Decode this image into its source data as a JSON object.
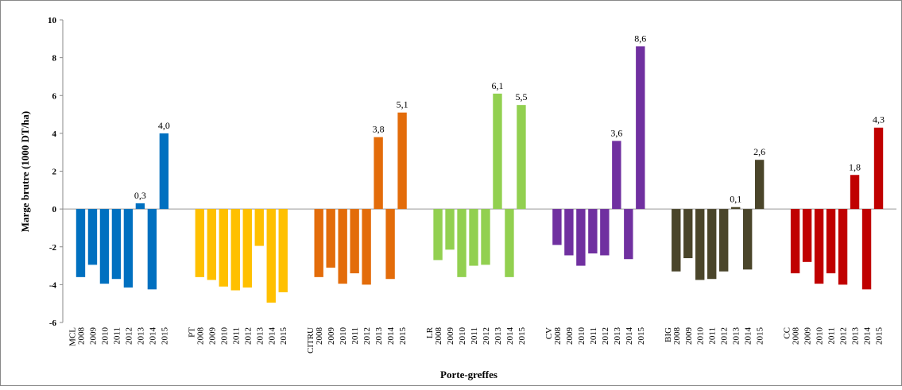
{
  "chart_data": {
    "type": "bar",
    "xlabel": "Porte-greffes",
    "ylabel": "Marge brutre (1000 DT/ha)",
    "ylim": [
      -6,
      10
    ],
    "yticks": [
      -6,
      -4,
      -2,
      0,
      2,
      4,
      6,
      8,
      10
    ],
    "ytick_labels": [
      "-6",
      "-4",
      "-2",
      "0",
      "2",
      "4",
      "6",
      "8",
      "10"
    ],
    "grid": false,
    "legend": "none",
    "years": [
      "2008",
      "2009",
      "2010",
      "2011",
      "2012",
      "2013",
      "2014",
      "2015"
    ],
    "groups": [
      {
        "name": "MCL",
        "color": "#0070C0",
        "values": [
          -3.6,
          -2.95,
          -3.95,
          -3.7,
          -4.15,
          0.3,
          -4.25,
          4.0
        ],
        "labels": [
          "",
          "",
          "",
          "",
          "",
          "0,3",
          "",
          "4,0"
        ]
      },
      {
        "name": "PT",
        "color": "#FFC000",
        "values": [
          -3.6,
          -3.75,
          -4.1,
          -4.3,
          -4.15,
          -1.95,
          -4.95,
          -4.4
        ],
        "labels": [
          "",
          "",
          "",
          "",
          "",
          "",
          "",
          ""
        ]
      },
      {
        "name": "CITRU",
        "color": "#E36C0A",
        "values": [
          -3.6,
          -3.1,
          -3.95,
          -3.4,
          -4.0,
          3.8,
          -3.7,
          5.1
        ],
        "labels": [
          "",
          "",
          "",
          "",
          "",
          "3,8",
          "",
          "5,1"
        ]
      },
      {
        "name": "LR",
        "color": "#92D050",
        "values": [
          -2.7,
          -2.15,
          -3.6,
          -3.0,
          -2.95,
          6.1,
          -3.6,
          5.5
        ],
        "labels": [
          "",
          "",
          "",
          "",
          "",
          "6,1",
          "",
          "5,5"
        ]
      },
      {
        "name": "CV",
        "color": "#7030A0",
        "values": [
          -1.9,
          -2.45,
          -3.0,
          -2.35,
          -2.45,
          3.6,
          -2.65,
          8.6
        ],
        "labels": [
          "",
          "",
          "",
          "",
          "",
          "3,6",
          "",
          "8,6"
        ]
      },
      {
        "name": "BIG",
        "color": "#4A452A",
        "values": [
          -3.3,
          -2.6,
          -3.75,
          -3.7,
          -3.3,
          0.1,
          -3.2,
          2.6
        ],
        "labels": [
          "",
          "",
          "",
          "",
          "",
          "0,1",
          "",
          "2,6"
        ]
      },
      {
        "name": "CC",
        "color": "#C00000",
        "values": [
          -3.4,
          -2.8,
          -3.95,
          -3.4,
          -4.0,
          1.8,
          -4.25,
          4.3
        ],
        "labels": [
          "",
          "",
          "",
          "",
          "",
          "1,8",
          "",
          "4,3"
        ]
      }
    ]
  }
}
